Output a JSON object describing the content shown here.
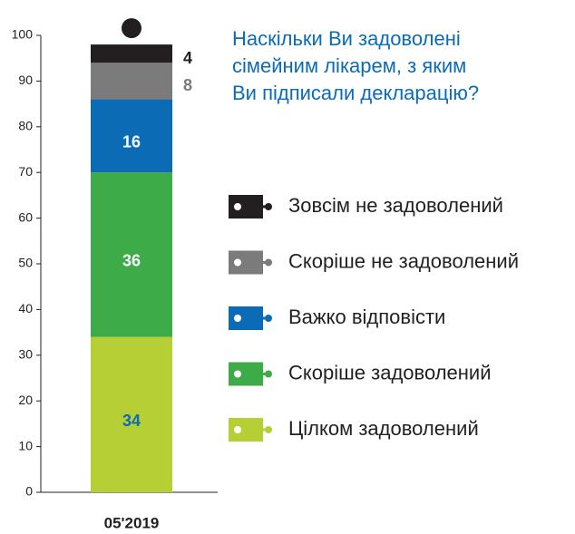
{
  "chart_data": {
    "type": "stacked_bar",
    "title": "Наскільки Ви задоволені\nсімейним лікарем, з яким\nВи підписали декларацію?",
    "categories": [
      "05'2019"
    ],
    "series": [
      {
        "name": "Цілком задоволений",
        "color": "#b6cf34",
        "label_color": "#0b6cb5",
        "values": [
          34
        ]
      },
      {
        "name": "Скоріше задоволений",
        "color": "#3cab48",
        "label_color": "#ffffff",
        "values": [
          36
        ]
      },
      {
        "name": "Важко відповісти",
        "color": "#0b6cb5",
        "label_color": "#ffffff",
        "values": [
          16
        ]
      },
      {
        "name": "Скоріше не задоволений",
        "color": "#7b7b7b",
        "label_color": "#7b7b7b",
        "values": [
          8
        ]
      },
      {
        "name": "Зовсім не задоволений",
        "color": "#231f20",
        "label_color": "#231f20",
        "values": [
          4
        ]
      }
    ],
    "ylim": [
      0,
      100
    ],
    "yticks": [
      0,
      10,
      20,
      30,
      40,
      50,
      60,
      70,
      80,
      90,
      100
    ]
  }
}
